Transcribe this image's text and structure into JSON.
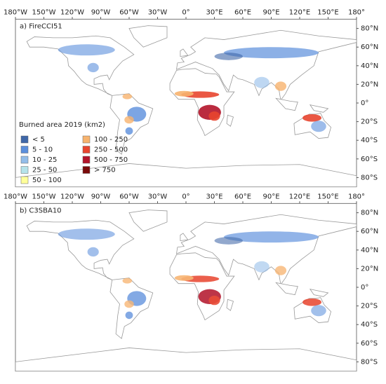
{
  "panels": [
    {
      "title": "a) FireCCI51",
      "lon_ticks": [
        {
          "value": -180,
          "label": "180°W"
        },
        {
          "value": -150,
          "label": "150°W"
        },
        {
          "value": -120,
          "label": "120°W"
        },
        {
          "value": -90,
          "label": "90°W"
        },
        {
          "value": -60,
          "label": "60°W"
        },
        {
          "value": -30,
          "label": "30°W"
        },
        {
          "value": 0,
          "label": "0°"
        },
        {
          "value": 30,
          "label": "30°E"
        },
        {
          "value": 60,
          "label": "60°E"
        },
        {
          "value": 90,
          "label": "90°E"
        },
        {
          "value": 120,
          "label": "120°E"
        },
        {
          "value": 150,
          "label": "150°E"
        },
        {
          "value": 180,
          "label": "180°"
        }
      ],
      "lat_ticks": [
        {
          "value": 80,
          "label": "80°N"
        },
        {
          "value": 60,
          "label": "60°N"
        },
        {
          "value": 40,
          "label": "40°N"
        },
        {
          "value": 20,
          "label": "20°N"
        },
        {
          "value": 0,
          "label": "0°"
        },
        {
          "value": -20,
          "label": "20°S"
        },
        {
          "value": -40,
          "label": "40°S"
        },
        {
          "value": -60,
          "label": "60°S"
        },
        {
          "value": -80,
          "label": "80°S"
        }
      ]
    },
    {
      "title": "b) C3SBA10",
      "lon_ticks": [
        {
          "value": -180,
          "label": "180°W"
        },
        {
          "value": -150,
          "label": "150°W"
        },
        {
          "value": -120,
          "label": "120°W"
        },
        {
          "value": -90,
          "label": "90°W"
        },
        {
          "value": -60,
          "label": "60°W"
        },
        {
          "value": -30,
          "label": "30°W"
        },
        {
          "value": 0,
          "label": "0°"
        },
        {
          "value": 30,
          "label": "30°E"
        },
        {
          "value": 60,
          "label": "60°E"
        },
        {
          "value": 90,
          "label": "90°E"
        },
        {
          "value": 120,
          "label": "120°E"
        },
        {
          "value": 150,
          "label": "150°E"
        },
        {
          "value": 180,
          "label": "180°"
        }
      ],
      "lat_ticks": [
        {
          "value": 80,
          "label": "80°N"
        },
        {
          "value": 60,
          "label": "60°N"
        },
        {
          "value": 40,
          "label": "40°N"
        },
        {
          "value": 20,
          "label": "20°N"
        },
        {
          "value": 0,
          "label": "0°"
        },
        {
          "value": -20,
          "label": "20°S"
        },
        {
          "value": -40,
          "label": "40°S"
        },
        {
          "value": -60,
          "label": "60°S"
        },
        {
          "value": -80,
          "label": "80°S"
        }
      ]
    }
  ],
  "legend": {
    "title": "Burned area 2019 (km2)",
    "items": [
      {
        "label": "< 5",
        "color": "#3f67a8"
      },
      {
        "label": "5 - 10",
        "color": "#5b8fdc"
      },
      {
        "label": "10 - 25",
        "color": "#93bde9"
      },
      {
        "label": "25 - 50",
        "color": "#b5e3ea"
      },
      {
        "label": "50 - 100",
        "color": "#ffff9a"
      },
      {
        "label": "100 - 250",
        "color": "#f7b36e"
      },
      {
        "label": "250 - 500",
        "color": "#e8452f"
      },
      {
        "label": "500 - 750",
        "color": "#b3142a"
      },
      {
        "label": "> 750",
        "color": "#7a0a0a"
      }
    ]
  }
}
